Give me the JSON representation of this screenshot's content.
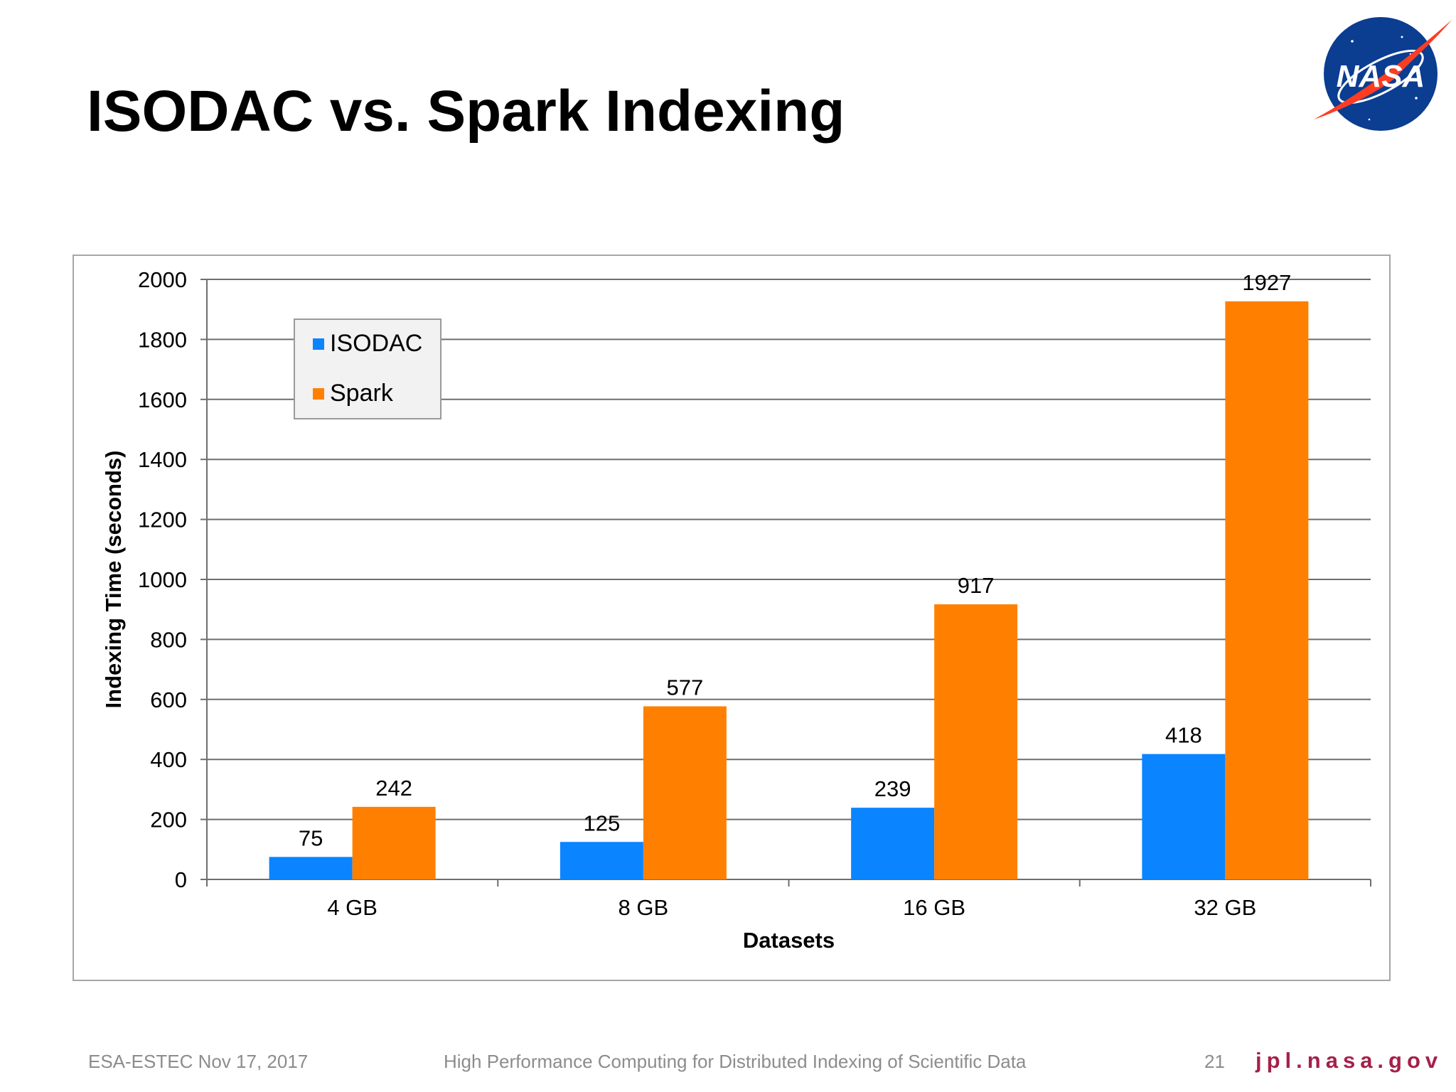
{
  "slide": {
    "title": "ISODAC vs. Spark Indexing"
  },
  "logo": {
    "text": "NASA",
    "icon": "nasa-meatball-icon",
    "colors": {
      "blue": "#0b3d91",
      "red": "#fc3d21",
      "white": "#ffffff"
    }
  },
  "chart_data": {
    "type": "bar",
    "categories": [
      "4 GB",
      "8 GB",
      "16 GB",
      "32 GB"
    ],
    "series": [
      {
        "name": "ISODAC",
        "color": "#0a84ff",
        "values": [
          75,
          125,
          239,
          418
        ]
      },
      {
        "name": "Spark",
        "color": "#ff8000",
        "values": [
          242,
          577,
          917,
          1927
        ]
      }
    ],
    "xlabel": "Datasets",
    "ylabel": "Indexing Time (seconds)",
    "ylim": [
      0,
      2000
    ],
    "yticks": [
      0,
      200,
      400,
      600,
      800,
      1000,
      1200,
      1400,
      1600,
      1800,
      2000
    ],
    "grid": true,
    "legend_position": "top-left",
    "data_labels": true
  },
  "footer": {
    "event": "ESA-ESTEC Nov 17, 2017",
    "subtitle": "High Performance Computing for Distributed Indexing of Scientific Data",
    "page_number": "21",
    "url": "jpl.nasa.gov"
  }
}
